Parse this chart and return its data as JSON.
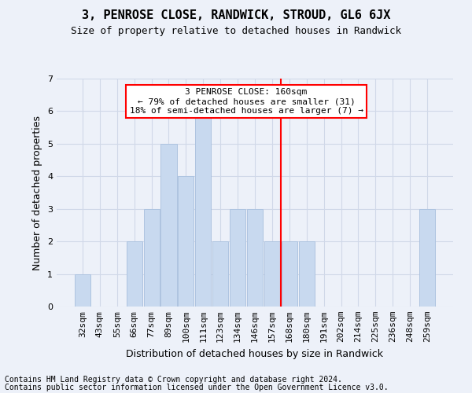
{
  "title": "3, PENROSE CLOSE, RANDWICK, STROUD, GL6 6JX",
  "subtitle": "Size of property relative to detached houses in Randwick",
  "xlabel": "Distribution of detached houses by size in Randwick",
  "ylabel": "Number of detached properties",
  "footer1": "Contains HM Land Registry data © Crown copyright and database right 2024.",
  "footer2": "Contains public sector information licensed under the Open Government Licence v3.0.",
  "categories": [
    "32sqm",
    "43sqm",
    "55sqm",
    "66sqm",
    "77sqm",
    "89sqm",
    "100sqm",
    "111sqm",
    "123sqm",
    "134sqm",
    "146sqm",
    "157sqm",
    "168sqm",
    "180sqm",
    "191sqm",
    "202sqm",
    "214sqm",
    "225sqm",
    "236sqm",
    "248sqm",
    "259sqm"
  ],
  "values": [
    1,
    0,
    0,
    2,
    3,
    5,
    4,
    6,
    2,
    3,
    3,
    2,
    2,
    2,
    0,
    0,
    0,
    0,
    0,
    0,
    3
  ],
  "bar_color": "#c8d9ef",
  "bar_edge_color": "#aec4e0",
  "grid_color": "#d0d8e8",
  "background_color": "#edf1f9",
  "red_line_x": 11.5,
  "annotation_text": "3 PENROSE CLOSE: 160sqm\n← 79% of detached houses are smaller (31)\n18% of semi-detached houses are larger (7) →",
  "annotation_box_color": "white",
  "annotation_box_edge": "red",
  "ylim": [
    0,
    7
  ],
  "yticks": [
    0,
    1,
    2,
    3,
    4,
    5,
    6,
    7
  ],
  "title_fontsize": 11,
  "subtitle_fontsize": 9,
  "annotation_fontsize": 8,
  "ylabel_fontsize": 9,
  "xlabel_fontsize": 9,
  "tick_fontsize": 8,
  "footer_fontsize": 7
}
